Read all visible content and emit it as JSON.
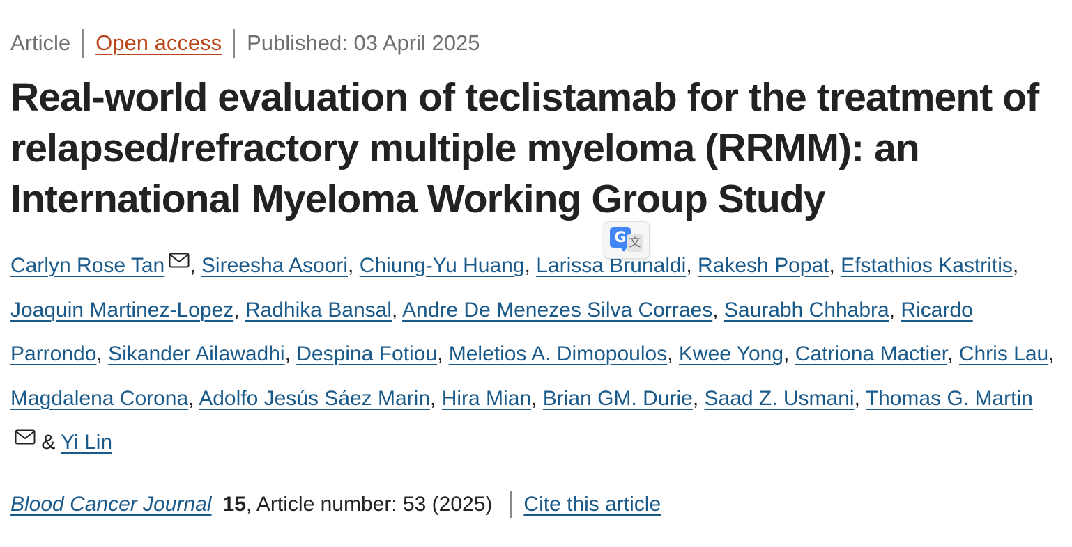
{
  "meta": {
    "type": "Article",
    "access": "Open access",
    "published": "Published: 03 April 2025"
  },
  "title": "Real-world evaluation of teclistamab for the treatment of relapsed/refractory multiple myeloma (RRMM): an International Myeloma Working Group Study",
  "translate_badge": {
    "icon": "google-translate-icon",
    "g": "G",
    "wen": "文",
    "color": "#4285f4"
  },
  "authors": [
    "Carlyn Rose Tan",
    "Sireesha Asoori",
    "Chiung-Yu Huang",
    "Larissa Brunaldi",
    "Rakesh Popat",
    "Efstathios Kastritis",
    "Joaquin Martinez-Lopez",
    "Radhika Bansal",
    "Andre De Menezes Silva Corraes",
    "Saurabh Chhabra",
    "Ricardo Parrondo",
    "Sikander Ailawadhi",
    "Despina Fotiou",
    "Meletios A. Dimopoulos",
    "Kwee Yong",
    "Catriona Mactier",
    "Chris Lau",
    "Magdalena Corona",
    "Adolfo Jesús Sáez Marin",
    "Hira Mian",
    "Brian GM. Durie",
    "Saad Z. Usmani",
    "Thomas G. Martin",
    "Yi Lin"
  ],
  "author_separators": {
    "comma": ", ",
    "final": " & "
  },
  "journal": {
    "name": "Blood Cancer Journal",
    "volume": "15",
    "article_number": ", Article number: 53 (2025)",
    "cite": "Cite this article"
  },
  "colors": {
    "link": "#1a5a8a",
    "open_access": "#b9461b",
    "text": "#222222",
    "muted": "#6f6f6f"
  }
}
